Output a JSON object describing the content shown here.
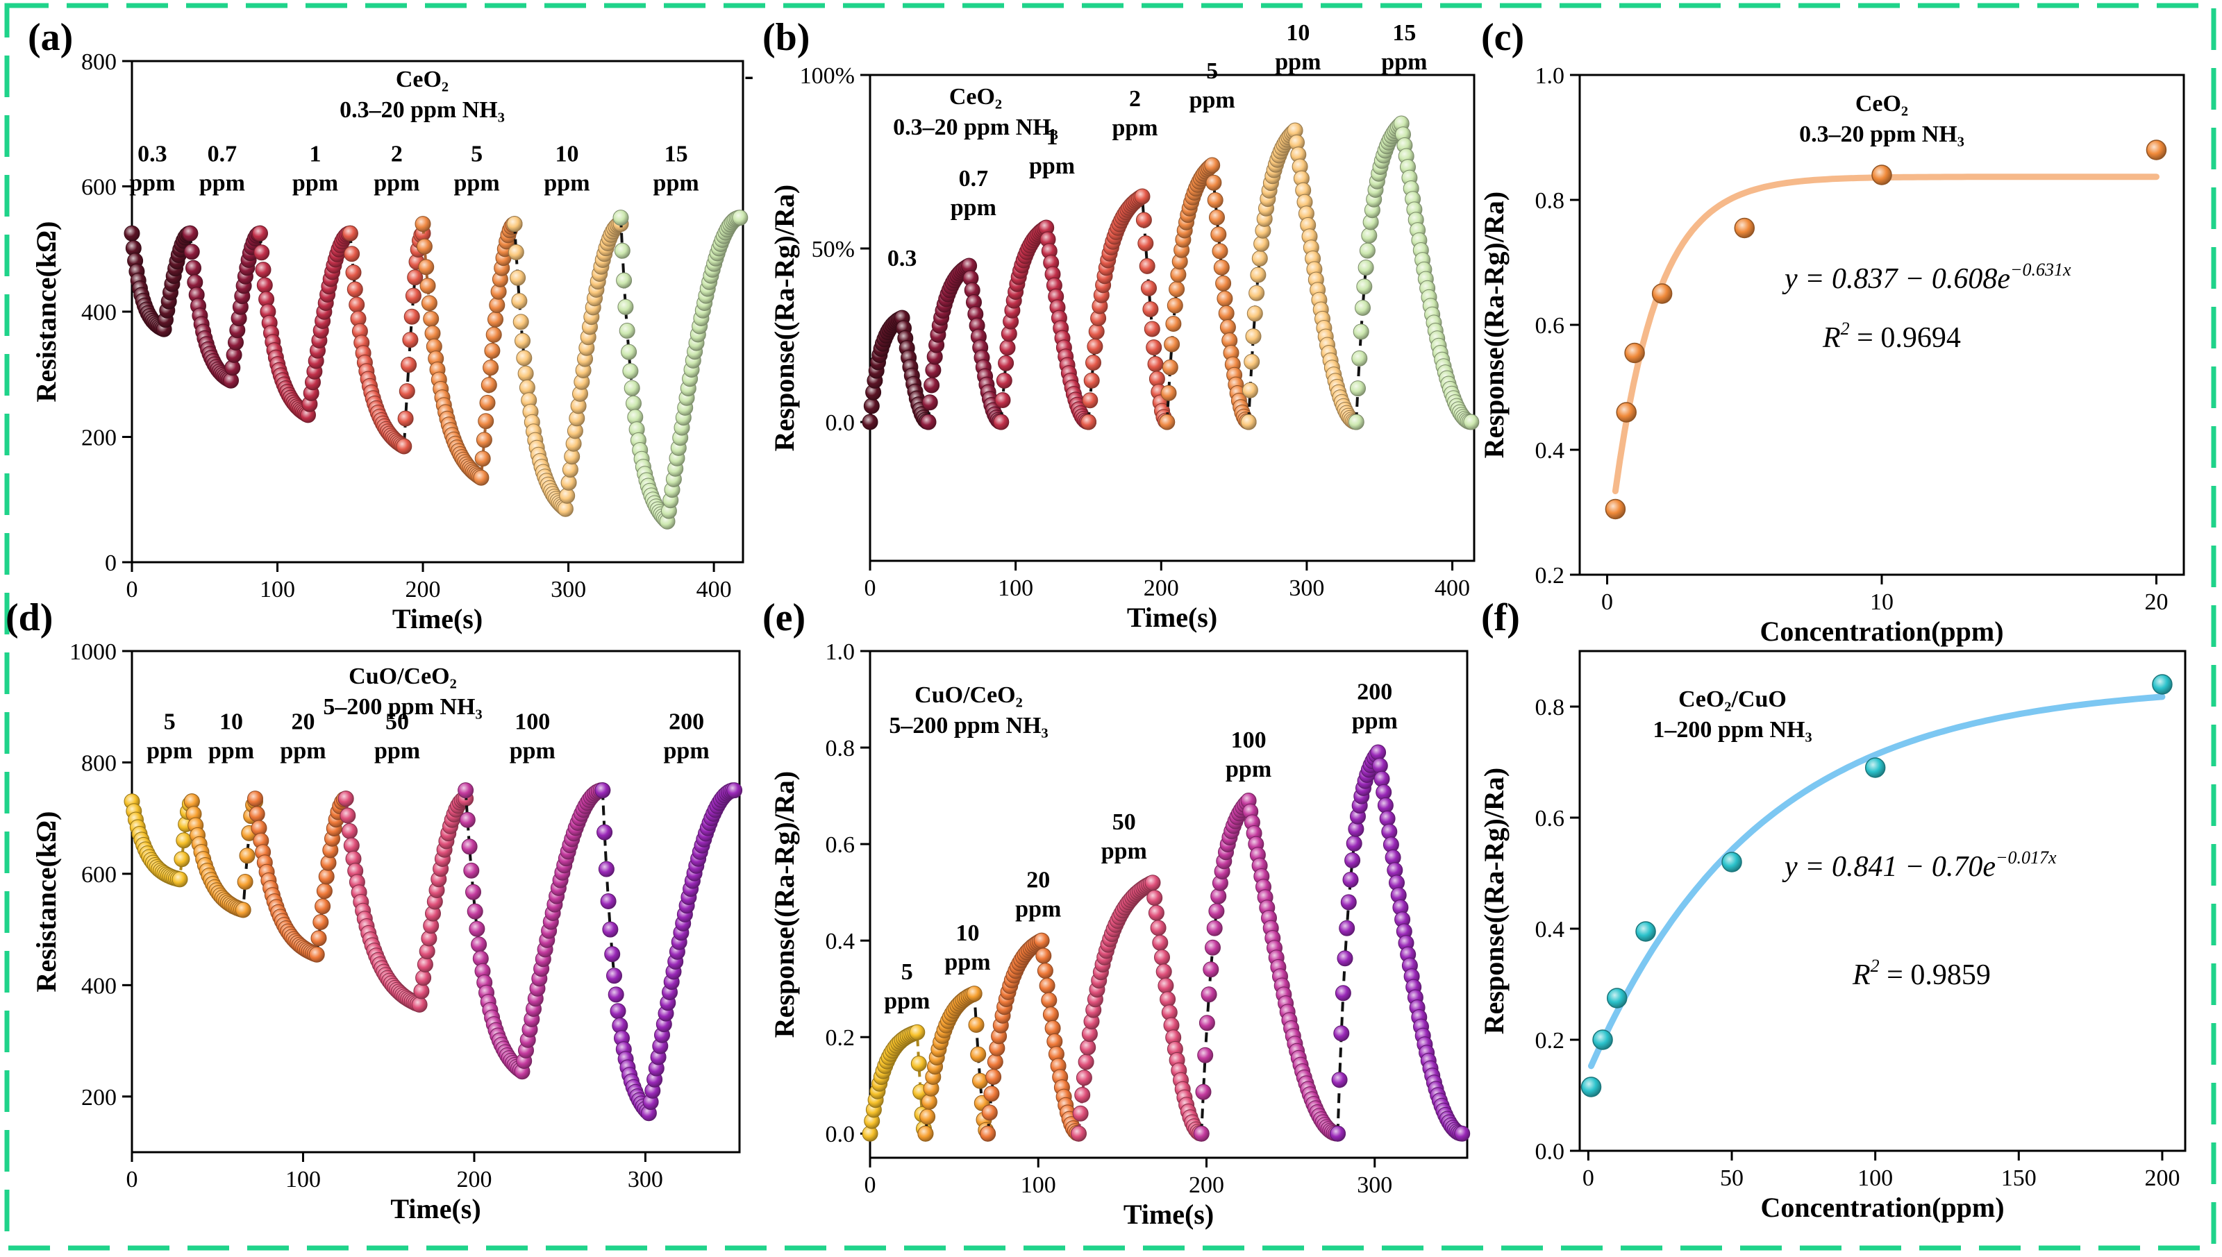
{
  "figure": {
    "border_color": "#1fd38a"
  },
  "chart_data": [
    {
      "panel": "(a)",
      "type": "scatter",
      "title": "CeO2 0.3–20 ppm NH3",
      "title_lines": [
        "CeO₂",
        "0.3–20 ppm NH₃"
      ],
      "title_color": "#f07d2a",
      "xlabel": "Time(s)",
      "ylabel": "Resistance(kΩ)",
      "xlim": [
        0,
        420
      ],
      "ylim": [
        0,
        800
      ],
      "xticks": [
        0,
        100,
        200,
        300,
        400
      ],
      "yticks": [
        0,
        200,
        400,
        600,
        800
      ],
      "cycles": [
        {
          "t0": 0,
          "t1": 22,
          "t2": 40,
          "base": 525,
          "min": 372,
          "color": "#5c1426",
          "label": [
            "0.3",
            "ppm"
          ],
          "lx": 14,
          "ly": 640
        },
        {
          "t0": 40,
          "t1": 68,
          "t2": 88,
          "base": 525,
          "min": 290,
          "color": "#8d1c3c",
          "label": [
            "0.7",
            "ppm"
          ],
          "lx": 62,
          "ly": 640
        },
        {
          "t0": 88,
          "t1": 121,
          "t2": 150,
          "base": 525,
          "min": 235,
          "color": "#c2304a",
          "label": [
            "1",
            "ppm"
          ],
          "lx": 126,
          "ly": 640
        },
        {
          "t0": 150,
          "t1": 187,
          "t2": 200,
          "base": 525,
          "min": 185,
          "color": "#e55a4a",
          "label": [
            "2",
            "ppm"
          ],
          "lx": 182,
          "ly": 640
        },
        {
          "t0": 200,
          "t1": 240,
          "t2": 263,
          "base": 540,
          "min": 135,
          "color": "#f08a45",
          "label": [
            "5",
            "ppm"
          ],
          "lx": 237,
          "ly": 640
        },
        {
          "t0": 263,
          "t1": 298,
          "t2": 336,
          "base": 540,
          "min": 85,
          "color": "#fbc87c",
          "label": [
            "10",
            "ppm"
          ],
          "lx": 299,
          "ly": 640
        },
        {
          "t0": 336,
          "t1": 368,
          "t2": 418,
          "base": 550,
          "min": 65,
          "color": "#cde8b0",
          "label": [
            "15",
            "ppm"
          ],
          "lx": 374,
          "ly": 640
        }
      ]
    },
    {
      "panel": "(b)",
      "type": "scatter",
      "title": "CeO2 0.3–20 ppm NH3",
      "title_lines": [
        "CeO₂",
        "0.3–20 ppm NH₃"
      ],
      "title_color": "#f07d2a",
      "xlabel": "Time(s)",
      "ylabel": "Response((Ra-Rg)/Ra)",
      "xlim": [
        0,
        415
      ],
      "ylim": [
        -0.4,
        1.0
      ],
      "xticks": [
        0,
        100,
        200,
        300,
        400
      ],
      "yticks": [
        0,
        0.5,
        1.0
      ],
      "ytick_labels": [
        "0.0",
        "50%",
        "100%"
      ],
      "cycles": [
        {
          "t0": 0,
          "t1": 22,
          "t2": 40,
          "peak": 0.3,
          "color": "#5c1426",
          "label": [
            "0.3"
          ],
          "lx": 22,
          "ly": 0.45
        },
        {
          "t0": 40,
          "t1": 68,
          "t2": 90,
          "peak": 0.45,
          "color": "#8d1c3c",
          "label": [
            "0.7",
            "ppm"
          ],
          "lx": 71,
          "ly": 0.68
        },
        {
          "t0": 90,
          "t1": 121,
          "t2": 150,
          "peak": 0.56,
          "color": "#c2304a",
          "label": [
            "1",
            "ppm"
          ],
          "lx": 125,
          "ly": 0.8
        },
        {
          "t0": 150,
          "t1": 187,
          "t2": 204,
          "peak": 0.65,
          "color": "#e55a4a",
          "label": [
            "2",
            "ppm"
          ],
          "lx": 182,
          "ly": 0.91
        },
        {
          "t0": 204,
          "t1": 235,
          "t2": 260,
          "peak": 0.74,
          "color": "#f08a45",
          "label": [
            "5",
            "ppm"
          ],
          "lx": 235,
          "ly": 0.99
        },
        {
          "t0": 260,
          "t1": 292,
          "t2": 334,
          "peak": 0.84,
          "color": "#fbc87c",
          "label": [
            "10",
            "ppm"
          ],
          "lx": 294,
          "ly": 1.1
        },
        {
          "t0": 334,
          "t1": 365,
          "t2": 413,
          "peak": 0.86,
          "color": "#cde8b0",
          "label": [
            "15",
            "ppm"
          ],
          "lx": 367,
          "ly": 1.1
        }
      ]
    },
    {
      "panel": "(c)",
      "type": "scatter",
      "title": "CeO2 0.3–20 ppm NH3",
      "title_lines": [
        "CeO₂",
        "0.3–20 ppm NH₃"
      ],
      "title_color": "#f07d2a",
      "xlabel": "Concentration(ppm)",
      "ylabel": "Response((Ra-Rg)/Ra)",
      "xlim": [
        -1,
        21
      ],
      "ylim": [
        0.2,
        1.0
      ],
      "xticks": [
        0,
        10,
        20
      ],
      "yticks": [
        0.2,
        0.4,
        0.6,
        0.8,
        1.0
      ],
      "x": [
        0.3,
        0.7,
        1,
        2,
        5,
        10,
        20
      ],
      "y": [
        0.305,
        0.46,
        0.555,
        0.65,
        0.755,
        0.84,
        0.88
      ],
      "fit": {
        "a": 0.837,
        "b": 0.608,
        "k": 0.631,
        "color": "#f6b98a"
      },
      "marker_color": "#f08a3a",
      "equation": "y = 0.837 − 0.608e",
      "equation_exp": "−0.631x",
      "r2": "= 0.9694"
    },
    {
      "panel": "(d)",
      "type": "scatter",
      "title": "CuO/CeO2 5–200 ppm NH3",
      "title_lines": [
        "CuO/CeO₂",
        "5–200 ppm NH₃"
      ],
      "title_color": "#e03ad0",
      "xlabel": "Time(s)",
      "ylabel": "Resistance(kΩ)",
      "xlim": [
        0,
        355
      ],
      "ylim": [
        100,
        1000
      ],
      "xticks": [
        0,
        100,
        200,
        300
      ],
      "yticks": [
        200,
        400,
        600,
        800,
        1000
      ],
      "cycles": [
        {
          "t0": 0,
          "t1": 28,
          "t2": 35,
          "base": 730,
          "min": 590,
          "color": "#f7c12a",
          "label": [
            "5",
            "ppm"
          ],
          "lx": 22,
          "ly": 860
        },
        {
          "t0": 35,
          "t1": 65,
          "t2": 72,
          "base": 730,
          "min": 535,
          "color": "#f7a030",
          "label": [
            "10",
            "ppm"
          ],
          "lx": 58,
          "ly": 860
        },
        {
          "t0": 72,
          "t1": 108,
          "t2": 125,
          "base": 735,
          "min": 455,
          "color": "#f07a3a",
          "label": [
            "20",
            "ppm"
          ],
          "lx": 100,
          "ly": 860
        },
        {
          "t0": 125,
          "t1": 168,
          "t2": 195,
          "base": 735,
          "min": 365,
          "color": "#e0507a",
          "label": [
            "50",
            "ppm"
          ],
          "lx": 155,
          "ly": 860
        },
        {
          "t0": 195,
          "t1": 228,
          "t2": 275,
          "base": 750,
          "min": 245,
          "color": "#c43a9e",
          "label": [
            "100",
            "ppm"
          ],
          "lx": 234,
          "ly": 860
        },
        {
          "t0": 275,
          "t1": 302,
          "t2": 352,
          "base": 750,
          "min": 170,
          "color": "#9a28b8",
          "label": [
            "200",
            "ppm"
          ],
          "lx": 324,
          "ly": 860
        }
      ]
    },
    {
      "panel": "(e)",
      "type": "scatter",
      "title": "CuO/CeO2 5–200 ppm NH3",
      "title_lines": [
        "CuO/CeO₂",
        "5–200 ppm NH₃"
      ],
      "title_color": "#e03ad0",
      "xlabel": "Time(s)",
      "ylabel": "Response((Ra-Rg)/Ra)",
      "xlim": [
        0,
        355
      ],
      "ylim": [
        -0.05,
        1.0
      ],
      "xticks": [
        0,
        100,
        200,
        300
      ],
      "yticks": [
        0.0,
        0.2,
        0.4,
        0.6,
        0.8,
        1.0
      ],
      "cycles": [
        {
          "t0": 0,
          "t1": 28,
          "t2": 33,
          "peak": 0.21,
          "color": "#f7c12a",
          "label": [
            "5",
            "ppm"
          ],
          "lx": 22,
          "ly": 0.32
        },
        {
          "t0": 33,
          "t1": 62,
          "t2": 70,
          "peak": 0.29,
          "color": "#f7a030",
          "label": [
            "10",
            "ppm"
          ],
          "lx": 58,
          "ly": 0.4
        },
        {
          "t0": 70,
          "t1": 102,
          "t2": 124,
          "peak": 0.4,
          "color": "#f07a3a",
          "label": [
            "20",
            "ppm"
          ],
          "lx": 100,
          "ly": 0.51
        },
        {
          "t0": 124,
          "t1": 168,
          "t2": 197,
          "peak": 0.52,
          "color": "#e0507a",
          "label": [
            "50",
            "ppm"
          ],
          "lx": 151,
          "ly": 0.63
        },
        {
          "t0": 197,
          "t1": 225,
          "t2": 278,
          "peak": 0.69,
          "color": "#c43a9e",
          "label": [
            "100",
            "ppm"
          ],
          "lx": 225,
          "ly": 0.8
        },
        {
          "t0": 278,
          "t1": 302,
          "t2": 352,
          "peak": 0.79,
          "color": "#9a28b8",
          "label": [
            "200",
            "ppm"
          ],
          "lx": 300,
          "ly": 0.9
        }
      ]
    },
    {
      "panel": "(f)",
      "type": "scatter",
      "title": "CeO2/CuO 1–200 ppm NH3",
      "title_lines": [
        "CeO₂/CuO",
        "1–200 ppm NH₃"
      ],
      "title_color": "#e03ad0",
      "xlabel": "Concentration(ppm)",
      "ylabel": "Response((Ra-Rg)/Ra)",
      "xlim": [
        -3,
        208
      ],
      "ylim": [
        0.0,
        0.9
      ],
      "xticks": [
        0,
        50,
        100,
        150,
        200
      ],
      "yticks": [
        0.0,
        0.2,
        0.4,
        0.6,
        0.8
      ],
      "x": [
        1,
        5,
        10,
        20,
        50,
        100,
        200
      ],
      "y": [
        0.115,
        0.2,
        0.275,
        0.395,
        0.52,
        0.69,
        0.84
      ],
      "fit": {
        "a": 0.841,
        "b": 0.7,
        "k": 0.017,
        "color": "#7cc7f2"
      },
      "marker_color": "#2cc3cc",
      "equation": "y = 0.841 − 0.70e",
      "equation_exp": "−0.017x",
      "r2": "= 0.9859"
    }
  ],
  "extra_text": {
    "dash": "-"
  }
}
